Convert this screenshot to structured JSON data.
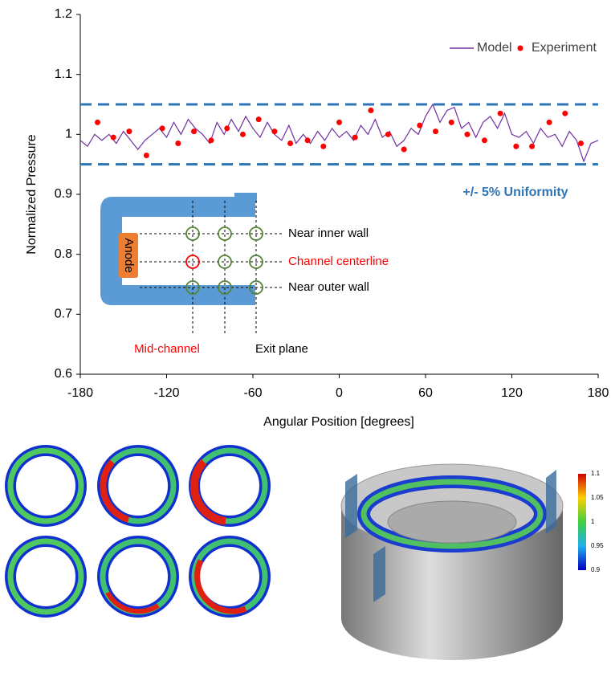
{
  "chart_data": {
    "type": "line_scatter",
    "xlabel": "Angular Position [degrees]",
    "ylabel": "Normalized Pressure",
    "xlim": [
      -180,
      180
    ],
    "xticks": [
      -180,
      -120,
      -60,
      0,
      60,
      120,
      180
    ],
    "ylim": [
      0.6,
      1.2
    ],
    "yticks": [
      0.6,
      0.7,
      0.8,
      0.9,
      1,
      1.1,
      1.2
    ],
    "legend": "top-right",
    "reference_lines": {
      "values": [
        1.05,
        0.95
      ],
      "color": "#2e75b6",
      "label": "+/- 5% Uniformity"
    },
    "series": [
      {
        "name": "Model",
        "kind": "line",
        "color": "#7030a0",
        "x": [
          -180,
          -175,
          -170,
          -165,
          -160,
          -155,
          -150,
          -145,
          -140,
          -135,
          -130,
          -125,
          -120,
          -115,
          -110,
          -105,
          -100,
          -95,
          -90,
          -85,
          -80,
          -75,
          -70,
          -65,
          -60,
          -55,
          -50,
          -45,
          -40,
          -35,
          -30,
          -25,
          -20,
          -15,
          -10,
          -5,
          0,
          5,
          10,
          15,
          20,
          25,
          30,
          35,
          40,
          45,
          50,
          55,
          60,
          65,
          70,
          75,
          80,
          85,
          90,
          95,
          100,
          105,
          110,
          115,
          120,
          125,
          130,
          135,
          140,
          145,
          150,
          155,
          160,
          165,
          170,
          175,
          180
        ],
        "values": [
          0.99,
          0.98,
          1.0,
          0.99,
          1.0,
          0.985,
          1.005,
          0.99,
          0.975,
          0.99,
          1.0,
          1.01,
          0.995,
          1.02,
          1.0,
          1.025,
          1.01,
          1.0,
          0.985,
          1.02,
          1.0,
          1.025,
          1.005,
          1.03,
          1.01,
          0.995,
          1.02,
          1.0,
          0.99,
          1.015,
          0.985,
          1.0,
          0.985,
          1.005,
          0.99,
          1.01,
          0.995,
          1.005,
          0.99,
          1.015,
          1.0,
          1.025,
          0.995,
          1.005,
          0.98,
          0.99,
          1.01,
          1.0,
          1.03,
          1.05,
          1.02,
          1.04,
          1.045,
          1.01,
          1.02,
          0.995,
          1.02,
          1.03,
          1.01,
          1.035,
          1.0,
          0.995,
          1.005,
          0.985,
          1.01,
          0.995,
          1.0,
          0.98,
          1.005,
          0.99,
          0.955,
          0.985,
          0.99
        ]
      },
      {
        "name": "Experiment",
        "kind": "scatter",
        "color": "#ff0000",
        "x": [
          -168,
          -157,
          -146,
          -134,
          -123,
          -112,
          -101,
          -89,
          -78,
          -67,
          -56,
          -45,
          -34,
          -22,
          -11,
          0,
          11,
          22,
          34,
          45,
          56,
          67,
          78,
          89,
          101,
          112,
          123,
          134,
          146,
          157,
          168
        ],
        "values": [
          1.02,
          0.995,
          1.005,
          0.965,
          1.01,
          0.985,
          1.005,
          0.99,
          1.01,
          1.0,
          1.025,
          1.005,
          0.985,
          0.99,
          0.98,
          1.02,
          0.995,
          1.04,
          1.0,
          0.975,
          1.015,
          1.005,
          1.02,
          1.0,
          0.99,
          1.035,
          0.98,
          0.98,
          1.02,
          1.035,
          0.985
        ]
      }
    ]
  },
  "diagram": {
    "anode": "Anode",
    "near_inner": "Near inner wall",
    "centerline": "Channel centerline",
    "near_outer": "Near outer wall",
    "mid_channel": "Mid-channel",
    "exit_plane": "Exit plane"
  },
  "colorbar": {
    "labels": [
      "1.1",
      "1.05",
      "1",
      "0.95",
      "0.9"
    ]
  }
}
